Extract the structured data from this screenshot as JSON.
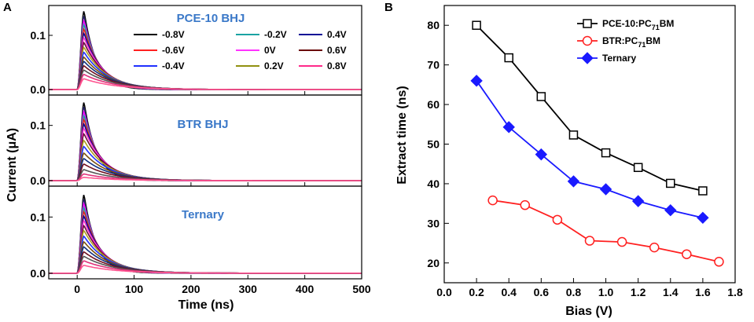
{
  "chart_data": [
    {
      "id": "A",
      "type": "line",
      "panel_label": "A",
      "ylabel": "Current (μA)",
      "xlabel": "Time (ns)",
      "xlim": [
        -50,
        500
      ],
      "xticks": [
        0,
        100,
        200,
        300,
        400,
        500
      ],
      "xtick_labels": [
        "0",
        "100",
        "200",
        "300",
        "400",
        "500"
      ],
      "ylim": [
        -0.01,
        0.155
      ],
      "yticks": [
        0.0,
        0.1
      ],
      "ytick_labels": [
        "0.0",
        "0.1"
      ],
      "subplots": [
        {
          "title": "PCE-10 BHJ",
          "peaks": [
            0.145,
            0.136,
            0.127,
            0.12,
            0.112,
            0.104,
            0.096,
            0.087,
            0.078,
            0.069,
            0.06,
            0.052,
            0.044,
            0.036,
            0.028,
            0.02
          ]
        },
        {
          "title": "BTR BHJ",
          "peaks": [
            0.142,
            0.134,
            0.125,
            0.118,
            0.111,
            0.103,
            0.095,
            0.085,
            0.073,
            0.062,
            0.05,
            0.04,
            0.03,
            0.02,
            0.012,
            0.006
          ]
        },
        {
          "title": "Ternary",
          "peaks": [
            0.14,
            0.132,
            0.124,
            0.117,
            0.11,
            0.102,
            0.094,
            0.085,
            0.076,
            0.066,
            0.056,
            0.047,
            0.038,
            0.03,
            0.022,
            0.014
          ]
        }
      ],
      "curve_colors": [
        "#000000",
        "#2a2a6e",
        "#ff00ff",
        "#1aa3a3",
        "#e82020",
        "#0a0a96",
        "#ff33cc",
        "#6a0a3c",
        "#b0a020",
        "#2030ff",
        "#7a5010",
        "#103080",
        "#701020",
        "#555555",
        "#e0307a",
        "#ff5590"
      ],
      "legend": [
        {
          "label": "-0.8V",
          "color": "#000000"
        },
        {
          "label": "-0.2V",
          "color": "#1aa3a3"
        },
        {
          "label": "0.4V",
          "color": "#0a0a96"
        },
        {
          "label": "-0.6V",
          "color": "#ff2020"
        },
        {
          "label": "0V",
          "color": "#ff33ff"
        },
        {
          "label": "0.6V",
          "color": "#6a0a0a"
        },
        {
          "label": "-0.4V",
          "color": "#2030ff"
        },
        {
          "label": "0.2V",
          "color": "#909010"
        },
        {
          "label": "0.8V",
          "color": "#ff2a8a"
        }
      ],
      "title_color": "#3a78c8"
    },
    {
      "id": "B",
      "type": "line",
      "panel_label": "B",
      "xlabel": "Bias (V)",
      "ylabel": "Extract time (ns)",
      "xlim": [
        0.0,
        1.8
      ],
      "xticks": [
        0.0,
        0.2,
        0.4,
        0.6,
        0.8,
        1.0,
        1.2,
        1.4,
        1.6,
        1.8
      ],
      "xtick_labels": [
        "0.0",
        "0.2",
        "0.4",
        "0.6",
        "0.8",
        "1.0",
        "1.2",
        "1.4",
        "1.6",
        "1.8"
      ],
      "ylim": [
        15,
        85
      ],
      "yticks": [
        20,
        30,
        40,
        50,
        60,
        70,
        80
      ],
      "ytick_labels": [
        "20",
        "30",
        "40",
        "50",
        "60",
        "70",
        "80"
      ],
      "series": [
        {
          "name": "PCE-10:PC71BM",
          "name_main": "PCE-10:PC",
          "name_sub": "71",
          "name_tail": "BM",
          "color": "#000000",
          "marker": "open-square",
          "x": [
            0.2,
            0.4,
            0.6,
            0.8,
            1.0,
            1.2,
            1.4,
            1.6
          ],
          "y": [
            80,
            71.8,
            62,
            52.3,
            47.8,
            44.1,
            40.1,
            38.2
          ]
        },
        {
          "name": "BTR:PC71BM",
          "name_main": "BTR:PC",
          "name_sub": "71",
          "name_tail": "BM",
          "color": "#ff2020",
          "marker": "open-circle",
          "x": [
            0.3,
            0.5,
            0.7,
            0.9,
            1.1,
            1.3,
            1.5,
            1.7
          ],
          "y": [
            35.8,
            34.6,
            30.9,
            25.6,
            25.3,
            23.9,
            22.2,
            20.3
          ]
        },
        {
          "name": "Ternary",
          "name_main": "Ternary",
          "name_sub": "",
          "name_tail": "",
          "color": "#1a1aff",
          "marker": "filled-diamond",
          "x": [
            0.2,
            0.4,
            0.6,
            0.8,
            1.0,
            1.2,
            1.4,
            1.6
          ],
          "y": [
            66,
            54.3,
            47.4,
            40.6,
            38.6,
            35.6,
            33.3,
            31.4
          ]
        }
      ]
    }
  ]
}
